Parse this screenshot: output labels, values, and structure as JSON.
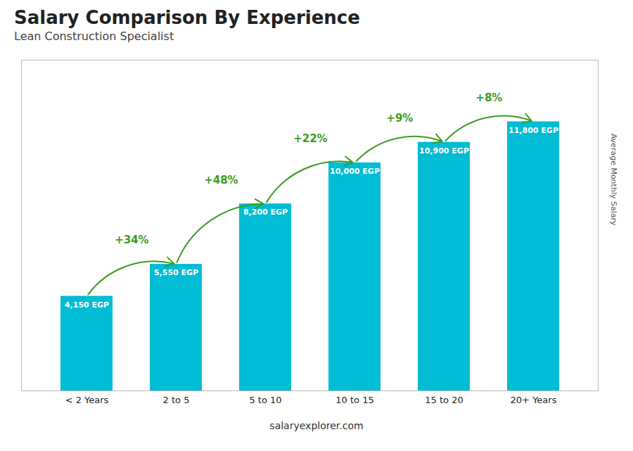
{
  "chart_data": {
    "type": "bar",
    "title": "Salary Comparison By Experience",
    "subtitle": "Lean Construction Specialist",
    "caption": "salaryexplorer.com",
    "ylabel": "Average Monthly Salary",
    "categories": [
      "< 2 Years",
      "2 to 5",
      "5 to 10",
      "10 to 15",
      "15 to 20",
      "20+ Years"
    ],
    "values": [
      4150,
      5550,
      8200,
      10000,
      10900,
      11800
    ],
    "value_labels": [
      "4,150 EGP",
      "5,550 EGP",
      "8,200 EGP",
      "10,000 EGP",
      "10,900 EGP",
      "11,800 EGP"
    ],
    "data_labels": true,
    "annotations": [
      "+34%",
      "+48%",
      "+22%",
      "+9%",
      "+8%"
    ],
    "color": "#00bcd4",
    "ylim": [
      0,
      14500
    ],
    "tick_labels": "x",
    "grid": false
  }
}
